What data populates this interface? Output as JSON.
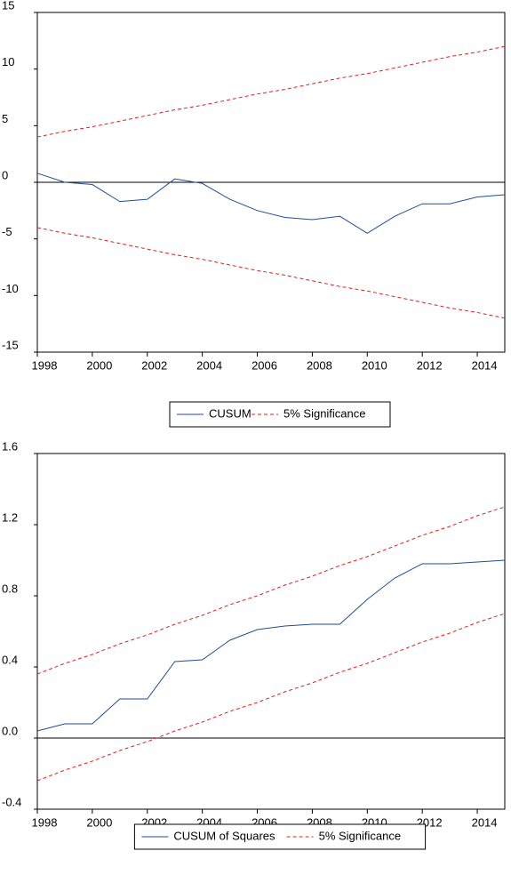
{
  "chart_data": [
    {
      "type": "line",
      "x": [
        1998,
        1999,
        2000,
        2001,
        2002,
        2003,
        2004,
        2005,
        2006,
        2007,
        2008,
        2009,
        2010,
        2011,
        2012,
        2013,
        2014,
        2015
      ],
      "series": [
        {
          "name": "CUSUM",
          "color": "#1f4e9a",
          "line_style": "solid",
          "values": [
            0.8,
            0.0,
            -0.2,
            -1.7,
            -1.5,
            0.3,
            -0.1,
            -1.5,
            -2.5,
            -3.1,
            -3.3,
            -3.0,
            -4.5,
            -3.0,
            -1.9,
            -1.9,
            -1.3,
            -1.1
          ]
        },
        {
          "name": "5% Significance",
          "color": "#e0201b",
          "line_style": "dashed",
          "values": [
            4.0,
            4.5,
            4.9,
            5.4,
            5.9,
            6.4,
            6.8,
            7.3,
            7.8,
            8.2,
            8.7,
            9.2,
            9.6,
            10.1,
            10.6,
            11.1,
            11.5,
            12.0
          ]
        },
        {
          "color": "#e0201b",
          "line_style": "dashed",
          "values": [
            -4.0,
            -4.5,
            -4.9,
            -5.4,
            -5.9,
            -6.4,
            -6.8,
            -7.3,
            -7.8,
            -8.2,
            -8.7,
            -9.2,
            -9.6,
            -10.1,
            -10.6,
            -11.1,
            -11.5,
            -12.0
          ]
        }
      ],
      "xlim": [
        1998,
        2015
      ],
      "xticks": [
        1998,
        2000,
        2002,
        2004,
        2006,
        2008,
        2010,
        2012,
        2014
      ],
      "ylim": [
        -15,
        15
      ],
      "yticks": [
        -15,
        -10,
        -5,
        0,
        5,
        10,
        15
      ]
    },
    {
      "type": "line",
      "x": [
        1998,
        1999,
        2000,
        2001,
        2002,
        2003,
        2004,
        2005,
        2006,
        2007,
        2008,
        2009,
        2010,
        2011,
        2012,
        2013,
        2014,
        2015
      ],
      "series": [
        {
          "name": "CUSUM of Squares",
          "color": "#1f4e9a",
          "line_style": "solid",
          "values": [
            0.04,
            0.08,
            0.08,
            0.22,
            0.22,
            0.43,
            0.44,
            0.55,
            0.61,
            0.63,
            0.64,
            0.64,
            0.78,
            0.9,
            0.98,
            0.98,
            0.99,
            1.0
          ]
        },
        {
          "name": "5% Significance",
          "color": "#e0201b",
          "line_style": "dashed",
          "values": [
            0.36,
            0.42,
            0.47,
            0.53,
            0.58,
            0.64,
            0.69,
            0.75,
            0.8,
            0.86,
            0.91,
            0.97,
            1.02,
            1.08,
            1.14,
            1.19,
            1.25,
            1.3
          ]
        },
        {
          "color": "#e0201b",
          "line_style": "dashed",
          "values": [
            -0.24,
            -0.18,
            -0.13,
            -0.07,
            -0.02,
            0.04,
            0.09,
            0.15,
            0.2,
            0.26,
            0.31,
            0.37,
            0.42,
            0.48,
            0.54,
            0.59,
            0.65,
            0.7
          ]
        }
      ],
      "xlim": [
        1998,
        2015
      ],
      "xticks": [
        1998,
        2000,
        2002,
        2004,
        2006,
        2008,
        2010,
        2012,
        2014
      ],
      "ylim": [
        -0.4,
        1.6
      ],
      "yticks": [
        -0.4,
        {
          "value": 0,
          "label": "0.0"
        },
        0.4,
        0.8,
        1.2,
        1.6
      ]
    }
  ]
}
